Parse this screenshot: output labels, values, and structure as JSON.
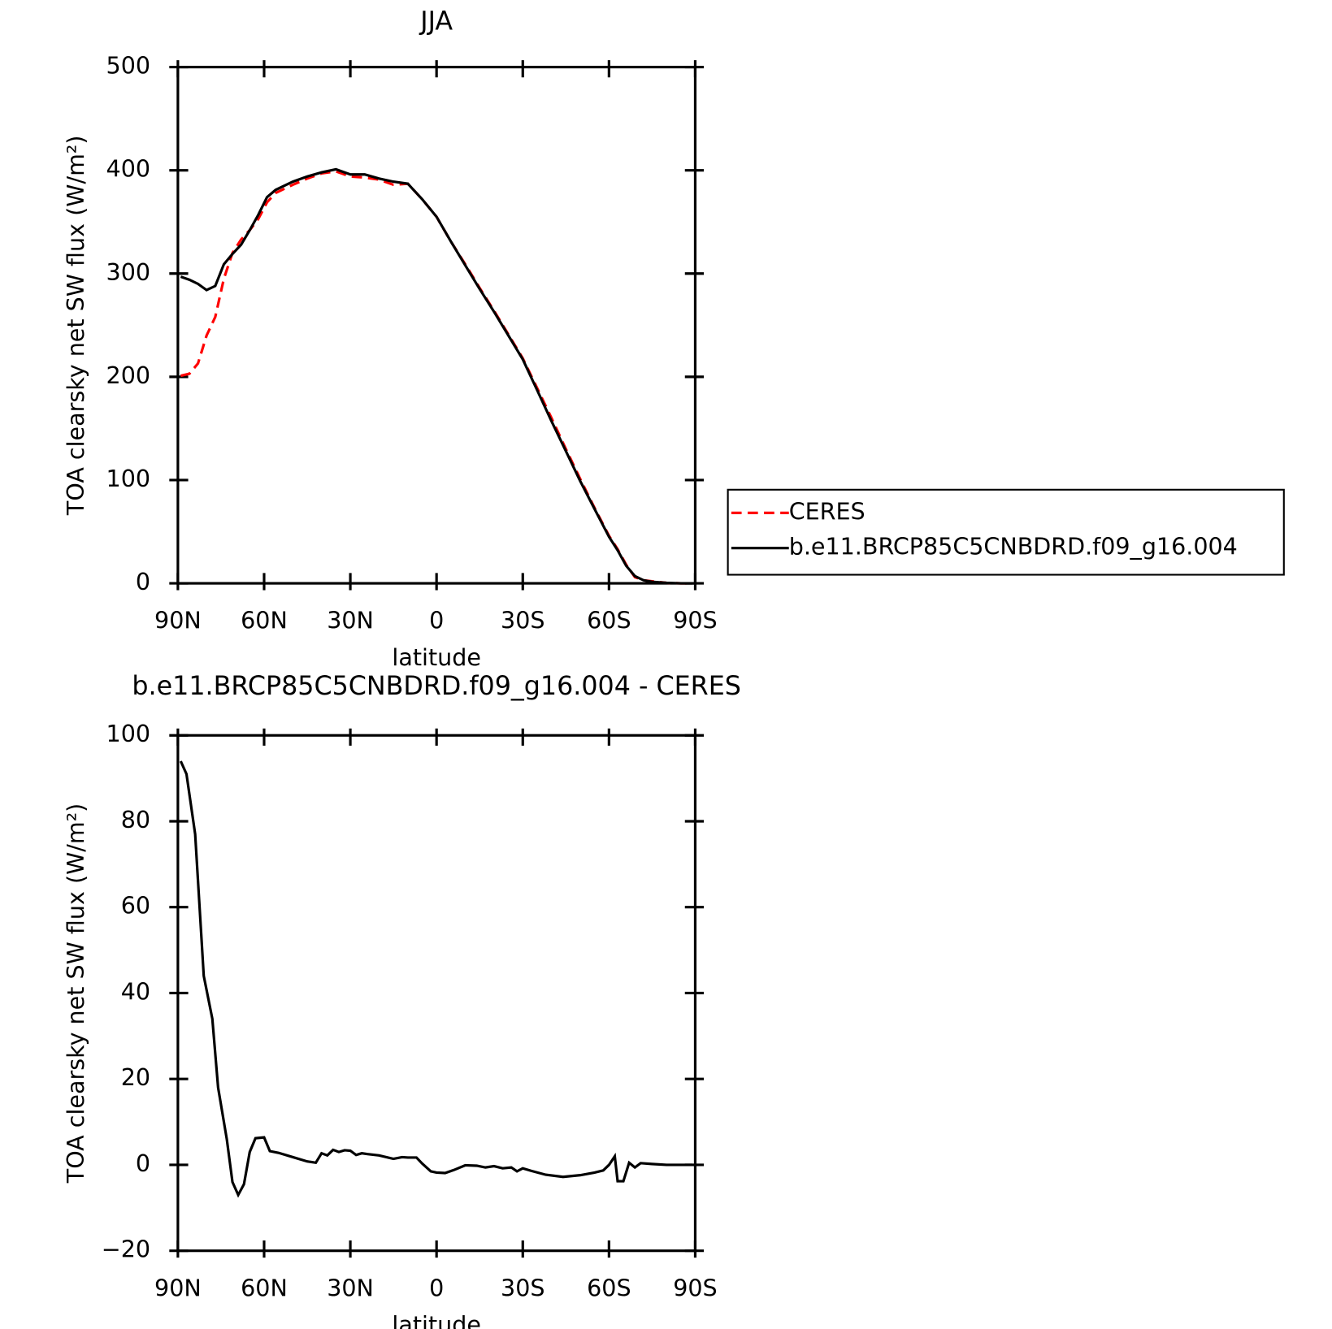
{
  "chart_data": [
    {
      "type": "line",
      "title": "JJA",
      "xlabel": "latitude",
      "ylabel": "TOA clearsky net SW flux (W/m²)",
      "x": [
        89,
        86,
        83,
        80,
        77,
        74,
        71,
        68,
        65,
        62,
        59,
        56,
        53,
        50,
        45,
        40,
        35,
        30,
        25,
        20,
        15,
        10,
        5,
        0,
        -5,
        -10,
        -15,
        -20,
        -25,
        -30,
        -35,
        -40,
        -45,
        -50,
        -55,
        -60,
        -63,
        -66,
        -69,
        -72,
        -75,
        -80,
        -85,
        -89
      ],
      "series": [
        {
          "name": "CERES",
          "color": "#ff0000",
          "dashed": true,
          "values": [
            201,
            203,
            213,
            240,
            258,
            295,
            320,
            333,
            342,
            353,
            369,
            378,
            382,
            386,
            392,
            397,
            399,
            394,
            393,
            391,
            386,
            387,
            372,
            355,
            331,
            309,
            286,
            264,
            241,
            218,
            189,
            160,
            130,
            101,
            73,
            46,
            33,
            18,
            6,
            3,
            2,
            0.5,
            0,
            0
          ]
        },
        {
          "name": "b.e11.BRCP85C5CNBDRD.f09_g16.004",
          "color": "#000000",
          "dashed": false,
          "values": [
            297,
            294,
            290,
            284,
            288,
            309,
            319,
            328,
            342,
            357,
            374,
            381,
            385,
            389,
            394,
            398,
            401,
            396,
            396,
            392,
            389,
            387,
            372,
            355,
            331,
            308,
            285,
            263,
            240,
            217,
            187,
            157,
            128,
            99,
            72,
            45,
            32,
            17,
            7,
            3,
            1.5,
            0.5,
            0,
            0
          ]
        }
      ],
      "xlim": [
        90,
        -90
      ],
      "xticks": [
        {
          "value": 90,
          "label": "90N"
        },
        {
          "value": 60,
          "label": "60N"
        },
        {
          "value": 30,
          "label": "30N"
        },
        0,
        {
          "value": -30,
          "label": "30S"
        },
        {
          "value": -60,
          "label": "60S"
        },
        {
          "value": -90,
          "label": "90S"
        }
      ],
      "ylim": [
        0,
        500
      ],
      "yticks": [
        0,
        100,
        200,
        300,
        400,
        500
      ],
      "legend": "right"
    },
    {
      "type": "line",
      "title": "b.e11.BRCP85C5CNBDRD.f09_g16.004 - CERES",
      "xlabel": "latitude",
      "ylabel": "TOA clearsky net SW flux (W/m²)",
      "x": [
        89,
        87,
        84,
        81,
        78,
        76,
        73,
        71,
        69,
        67,
        65,
        63,
        60,
        58,
        55,
        50,
        45,
        42,
        40,
        38,
        36,
        34,
        32,
        30,
        28,
        26,
        24,
        20,
        15,
        12,
        10,
        7,
        5,
        2,
        0,
        -3,
        -6,
        -10,
        -14,
        -17,
        -20,
        -23,
        -26,
        -28,
        -30,
        -33,
        -38,
        -44,
        -50,
        -55,
        -58,
        -60,
        -62,
        -63,
        -65,
        -67,
        -69,
        -71,
        -75,
        -80,
        -85,
        -89
      ],
      "series": [
        {
          "color": "#000000",
          "dashed": false,
          "values": [
            94,
            91,
            77,
            44,
            34,
            18,
            6,
            -4,
            -7,
            -4.5,
            3,
            6.2,
            6.4,
            3.2,
            2.8,
            1.8,
            0.8,
            0.5,
            2.7,
            2.2,
            3.5,
            3,
            3.4,
            3.3,
            2.3,
            2.7,
            2.5,
            2.2,
            1.4,
            1.8,
            1.7,
            1.7,
            0.3,
            -1.5,
            -1.8,
            -1.9,
            -1.2,
            -0.1,
            -0.2,
            -0.6,
            -0.3,
            -0.8,
            -0.6,
            -1.5,
            -0.8,
            -1.4,
            -2.3,
            -2.8,
            -2.4,
            -1.8,
            -1.3,
            0,
            2,
            -3.8,
            -3.8,
            0.5,
            -0.6,
            0.4,
            0.2,
            0,
            0,
            0
          ]
        }
      ],
      "xlim": [
        90,
        -90
      ],
      "xticks": [
        {
          "value": 90,
          "label": "90N"
        },
        {
          "value": 60,
          "label": "60N"
        },
        {
          "value": 30,
          "label": "30N"
        },
        0,
        {
          "value": -30,
          "label": "30S"
        },
        {
          "value": -60,
          "label": "60S"
        },
        {
          "value": -90,
          "label": "90S"
        }
      ],
      "ylim": [
        -20,
        100
      ],
      "yticks": [
        {
          "value": -20,
          "label": "−20"
        },
        0,
        20,
        40,
        60,
        80,
        100
      ]
    }
  ]
}
